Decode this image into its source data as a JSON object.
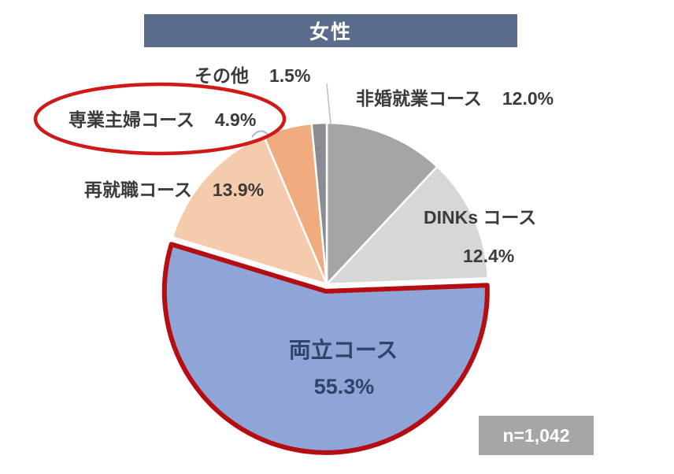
{
  "title": {
    "text": "女性"
  },
  "chart_data": {
    "type": "pie",
    "title": "女性",
    "n_label": "n=1,042",
    "legend_position": "none",
    "labels_on_chart": true,
    "start_angle_deg_clockwise_from_top": 0,
    "slices": [
      {
        "key": "hikon-shugyo",
        "label": "非婚就業コース",
        "value": 12.0,
        "value_text": "12.0%",
        "color": "#A5A5A5",
        "highlight": false
      },
      {
        "key": "dinks",
        "label": "DINKs コース",
        "value": 12.4,
        "value_text": "12.4%",
        "color": "#D7D7D7",
        "highlight": false
      },
      {
        "key": "ryoritsu",
        "label": "両立コース",
        "value": 55.3,
        "value_text": "55.3%",
        "color": "#8FA5D8",
        "highlight": true
      },
      {
        "key": "saishushoku",
        "label": "再就職コース",
        "value": 13.9,
        "value_text": "13.9%",
        "color": "#F6CBAD",
        "highlight": false
      },
      {
        "key": "sengyo-shufu",
        "label": "専業主婦コース",
        "value": 4.9,
        "value_text": "4.9%",
        "color": "#F0AC7E",
        "highlight": false
      },
      {
        "key": "sonota",
        "label": "その他",
        "value": 1.5,
        "value_text": "1.5%",
        "color": "#898D91",
        "highlight": false
      }
    ],
    "highlight_border": "#B50D11",
    "annotation": {
      "type": "ellipse",
      "target": "専業主婦コース 4.9%",
      "color": "#D01A1A"
    }
  },
  "colors": {
    "title_bg": "#5B6B8C",
    "title_text": "#FFFFFF",
    "n_badge_bg": "#A6A6A6",
    "n_badge_text": "#FFFFFF",
    "label_text": "#3B3B3B",
    "inner_label_text": "#2E4468",
    "slice_gap": "#FFFFFF",
    "leader_line": "#BDBDBD"
  }
}
